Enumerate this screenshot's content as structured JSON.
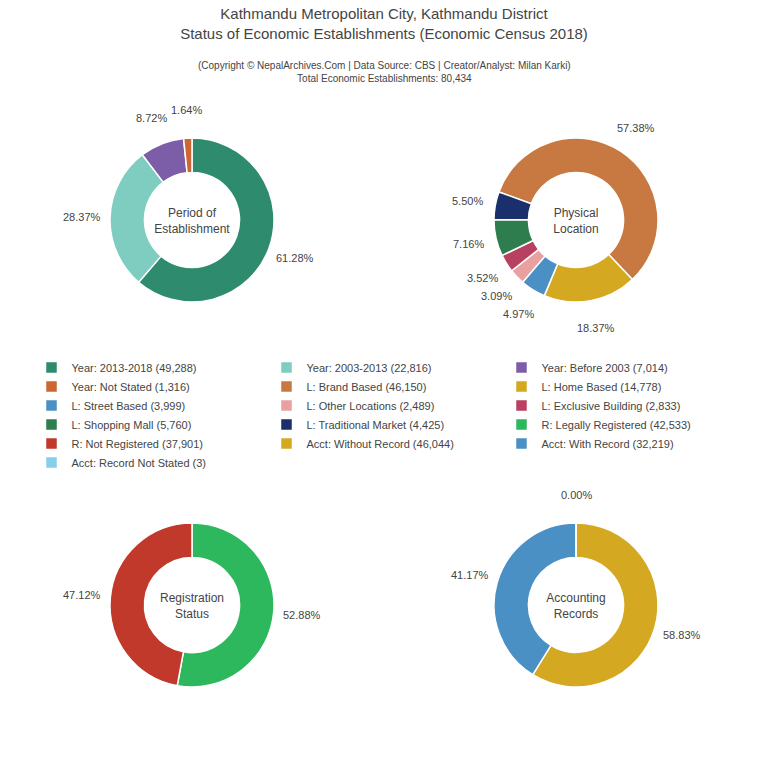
{
  "title": "Kathmandu Metropolitan City, Kathmandu District\nStatus of Economic Establishments (Economic Census 2018)",
  "subtitle": "(Copyright © NepalArchives.Com | Data Source: CBS | Creator/Analyst: Milan Karki)\nTotal Economic Establishments: 80,434",
  "legend": "center",
  "chart_data": [
    {
      "type": "pie",
      "title": "Period of\nEstablishment",
      "categories": [
        "Year: 2013-2018 (49,288)",
        "Year: 2003-2013 (22,816)",
        "Year: Before 2003 (7,014)",
        "Year: Not Stated (1,316)"
      ],
      "values": [
        61.28,
        28.37,
        8.72,
        1.64
      ],
      "value_labels": [
        "61.28%",
        "28.37%",
        "8.72%",
        "1.64%"
      ],
      "colors": [
        "#2e8b6e",
        "#7ecdc0",
        "#7b5ea7",
        "#cc6633"
      ],
      "data_labels": true
    },
    {
      "type": "pie",
      "title": "Physical\nLocation",
      "categories": [
        "L: Brand Based (46,150)",
        "L: Home Based (14,778)",
        "L: Street Based (3,999)",
        "L: Other Locations (2,489)",
        "L: Exclusive Building (2,833)",
        "L: Shopping Mall (5,760)",
        "L: Traditional Market (4,425)"
      ],
      "values": [
        57.38,
        18.37,
        4.97,
        3.09,
        3.52,
        7.16,
        5.5
      ],
      "value_labels": [
        "57.38%",
        "18.37%",
        "4.97%",
        "3.09%",
        "3.52%",
        "7.16%",
        "5.50%"
      ],
      "colors": [
        "#c87941",
        "#d4a820",
        "#4a90c4",
        "#e8a0a0",
        "#b84060",
        "#2e7d4f",
        "#1a2f6b"
      ],
      "data_labels": true
    },
    {
      "type": "pie",
      "title": "Registration\nStatus",
      "categories": [
        "R: Legally Registered (42,533)",
        "R: Not Registered (37,901)"
      ],
      "values": [
        52.88,
        47.12
      ],
      "value_labels": [
        "52.88%",
        "47.12%"
      ],
      "colors": [
        "#2eb85e",
        "#c0392b"
      ],
      "data_labels": true
    },
    {
      "type": "pie",
      "title": "Accounting\nRecords",
      "categories": [
        "Acct: Without Record (46,044)",
        "Acct: With Record (32,219)",
        "Acct: Record Not Stated (3)"
      ],
      "values": [
        58.83,
        41.17,
        0.0
      ],
      "value_labels": [
        "58.83%",
        "41.17%",
        "0.00%"
      ],
      "colors": [
        "#d4a820",
        "#4a90c4",
        "#87ceeb"
      ],
      "data_labels": true
    }
  ]
}
